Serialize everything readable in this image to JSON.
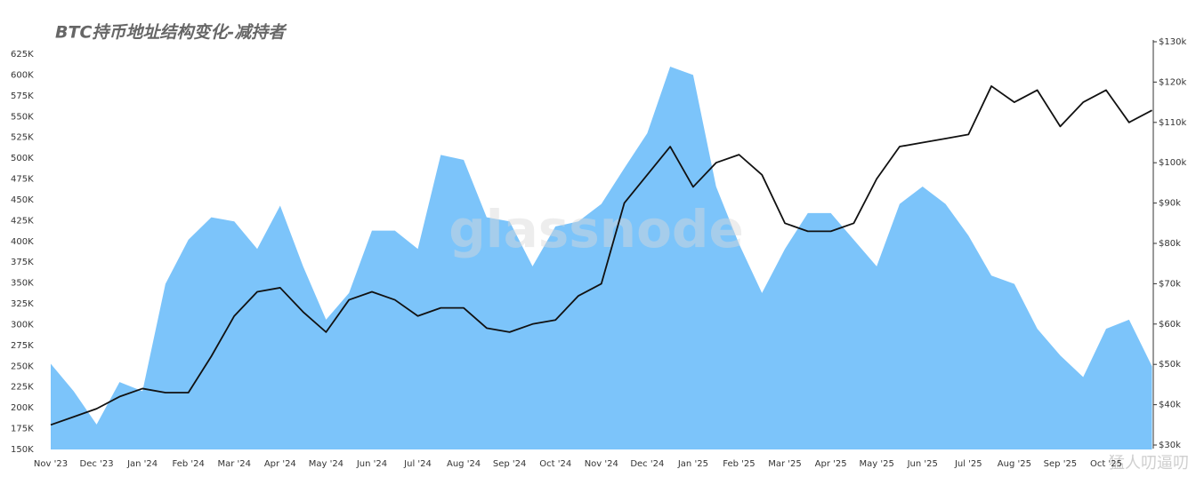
{
  "chart_data": {
    "type": "area_line",
    "title": "BTC持币地址结构变化-减持者",
    "watermark": "glassnode",
    "credit": "猛人叨逼叨",
    "categories": [
      "Nov '23",
      null,
      "Dec '23",
      null,
      "Jan '24",
      null,
      "Feb '24",
      null,
      "Mar '24",
      null,
      "Apr '24",
      null,
      "May '24",
      null,
      "Jun '24",
      null,
      "Jul '24",
      null,
      "Aug '24",
      null,
      "Sep '24",
      null,
      "Oct '24",
      null,
      "Nov '24",
      null,
      "Dec '24",
      null,
      "Jan '25",
      null,
      "Feb '25",
      null,
      "Mar '25",
      null,
      "Apr '25",
      null,
      "May '25",
      null,
      "Jun '25",
      null,
      "Jul '25",
      null,
      "Aug '25",
      null,
      "Sep '25",
      null,
      "Oct '25",
      null,
      null
    ],
    "series": [
      {
        "color": "#7cc4fa",
        "axis": "y",
        "values": [
          253,
          220,
          180,
          231,
          220,
          349,
          402,
          429,
          424,
          391,
          443,
          370,
          306,
          338,
          413,
          413,
          391,
          504,
          498,
          429,
          424,
          370,
          418,
          424,
          445,
          488,
          530,
          610,
          600,
          466,
          397,
          338,
          391,
          434,
          434,
          402,
          370,
          445,
          466,
          445,
          407,
          359,
          349,
          295,
          263,
          237,
          295,
          306,
          250
        ]
      },
      {
        "color": "#111111",
        "axis": "y2",
        "values": [
          35,
          37,
          39,
          42,
          44,
          43,
          43,
          52,
          62,
          68,
          69,
          63,
          58,
          66,
          68,
          66,
          62,
          64,
          64,
          59,
          58,
          60,
          61,
          67,
          70,
          90,
          97,
          104,
          94,
          100,
          102,
          97,
          85,
          83,
          83,
          85,
          96,
          104,
          105,
          106,
          107,
          119,
          115,
          118,
          109,
          115,
          118,
          110,
          113
        ]
      }
    ],
    "ylim": [
      150,
      625
    ],
    "yticks": [
      {
        "value": 150,
        "label": "150K"
      },
      {
        "value": 175,
        "label": "175K"
      },
      {
        "value": 200,
        "label": "200K"
      },
      {
        "value": 225,
        "label": "225K"
      },
      {
        "value": 250,
        "label": "250K"
      },
      {
        "value": 275,
        "label": "275K"
      },
      {
        "value": 300,
        "label": "300K"
      },
      {
        "value": 325,
        "label": "325K"
      },
      {
        "value": 350,
        "label": "350K"
      },
      {
        "value": 375,
        "label": "375K"
      },
      {
        "value": 400,
        "label": "400K"
      },
      {
        "value": 425,
        "label": "425K"
      },
      {
        "value": 450,
        "label": "450K"
      },
      {
        "value": 475,
        "label": "475K"
      },
      {
        "value": 500,
        "label": "500K"
      },
      {
        "value": 525,
        "label": "525K"
      },
      {
        "value": 550,
        "label": "550K"
      },
      {
        "value": 575,
        "label": "575K"
      },
      {
        "value": 600,
        "label": "600K"
      },
      {
        "value": 625,
        "label": "625K"
      }
    ],
    "y2lim": [
      30,
      130
    ],
    "y2ticks": [
      {
        "value": 30,
        "label": "$30k"
      },
      {
        "value": 40,
        "label": "$40k"
      },
      {
        "value": 50,
        "label": "$50k"
      },
      {
        "value": 60,
        "label": "$60k"
      },
      {
        "value": 70,
        "label": "$70k"
      },
      {
        "value": 80,
        "label": "$80k"
      },
      {
        "value": 90,
        "label": "$90k"
      },
      {
        "value": 100,
        "label": "$100k"
      },
      {
        "value": 110,
        "label": "$110k"
      },
      {
        "value": 120,
        "label": "$120k"
      },
      {
        "value": 130,
        "label": "$130k"
      }
    ]
  }
}
